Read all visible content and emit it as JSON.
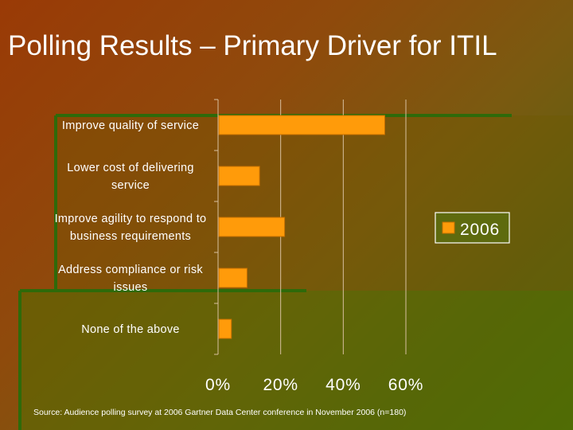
{
  "slide": {
    "title": "Polling Results – Primary Driver for ITIL",
    "source": "Source: Audience polling survey at 2006 Gartner Data Center conference in November 2006 (n=180)"
  },
  "colors": {
    "bar": "#ff9b0a",
    "bar_stroke": "#c77000",
    "grid": "#d8c0a0",
    "text": "#ffffff",
    "legend_bg": "#5e6a0e"
  },
  "chart_data": {
    "type": "bar",
    "orientation": "horizontal",
    "categories": [
      [
        "Improve quality of service"
      ],
      [
        "Lower cost of delivering",
        "service"
      ],
      [
        "Improve agility to respond to",
        "business requirements"
      ],
      [
        "Address compliance or risk",
        "issues"
      ],
      [
        "None of the above"
      ]
    ],
    "series": [
      {
        "name": "2006",
        "values": [
          53,
          13,
          21,
          9,
          4
        ]
      }
    ],
    "xlim": [
      0,
      60
    ],
    "xticks": [
      0,
      20,
      40,
      60
    ],
    "xtick_labels": [
      "0%",
      "20%",
      "40%",
      "60%"
    ],
    "legend": "right",
    "grid": true
  }
}
